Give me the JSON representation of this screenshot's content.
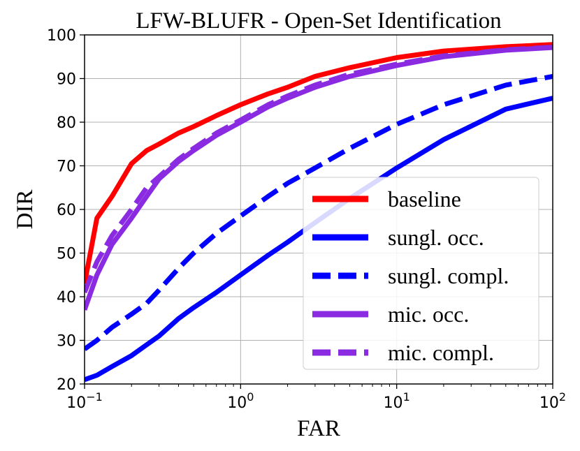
{
  "chart_data": {
    "type": "line",
    "title": "LFW-BLUFR - Open-Set Identification",
    "xlabel": "FAR",
    "ylabel": "DIR",
    "xscale": "log",
    "xlim": [
      0.1,
      100
    ],
    "ylim": [
      20,
      100
    ],
    "grid": true,
    "legend_position": "lower-right",
    "x_ticks": [
      {
        "value": 0.1,
        "base": "10",
        "exp": "−1"
      },
      {
        "value": 1,
        "base": "10",
        "exp": "0"
      },
      {
        "value": 10,
        "base": "10",
        "exp": "1"
      },
      {
        "value": 100,
        "base": "10",
        "exp": "2"
      }
    ],
    "y_ticks": [
      20,
      30,
      40,
      50,
      60,
      70,
      80,
      90,
      100
    ],
    "series": [
      {
        "name": "baseline",
        "color": "#ff0000",
        "dash": "solid",
        "x": [
          0.1,
          0.12,
          0.15,
          0.2,
          0.25,
          0.3,
          0.4,
          0.5,
          0.7,
          1,
          1.5,
          2,
          3,
          5,
          10,
          20,
          50,
          100
        ],
        "y": [
          43,
          58,
          63,
          70.5,
          73.5,
          75,
          77.5,
          79,
          81.5,
          84,
          86.5,
          88,
          90.5,
          92.5,
          94.8,
          96.3,
          97.3,
          97.8
        ]
      },
      {
        "name": "sungl. occ.",
        "color": "#0000ff",
        "dash": "solid",
        "x": [
          0.1,
          0.12,
          0.15,
          0.2,
          0.25,
          0.3,
          0.4,
          0.5,
          0.7,
          1,
          1.5,
          2,
          3,
          5,
          10,
          20,
          50,
          100
        ],
        "y": [
          21,
          22,
          24,
          26.5,
          29,
          31,
          35,
          37.5,
          41,
          45,
          49.5,
          52.5,
          57,
          62.5,
          69.5,
          76,
          83,
          85.5
        ]
      },
      {
        "name": "sungl. compl.",
        "color": "#0000ff",
        "dash": "dashed",
        "x": [
          0.1,
          0.12,
          0.15,
          0.2,
          0.25,
          0.3,
          0.4,
          0.5,
          0.7,
          1,
          1.5,
          2,
          3,
          5,
          10,
          20,
          50,
          100
        ],
        "y": [
          28,
          30,
          33,
          36,
          38.5,
          41.5,
          46.5,
          50,
          54.5,
          58.5,
          63,
          66,
          69.5,
          74,
          79.5,
          84,
          88.5,
          90.5
        ]
      },
      {
        "name": "mic. occ.",
        "color": "#8a2be2",
        "dash": "solid",
        "x": [
          0.1,
          0.12,
          0.15,
          0.2,
          0.25,
          0.3,
          0.4,
          0.5,
          0.7,
          1,
          1.5,
          2,
          3,
          5,
          10,
          20,
          50,
          100
        ],
        "y": [
          37,
          45,
          52,
          58,
          63,
          67,
          71,
          73.5,
          77,
          80,
          83.5,
          85.5,
          88,
          90.5,
          93,
          95,
          96.5,
          97.1
        ]
      },
      {
        "name": "mic. compl.",
        "color": "#8a2be2",
        "dash": "dashed",
        "x": [
          0.1,
          0.12,
          0.15,
          0.2,
          0.25,
          0.3,
          0.4,
          0.5,
          0.7,
          1,
          1.5,
          2,
          3,
          5,
          10,
          20,
          50,
          100
        ],
        "y": [
          41,
          48,
          54,
          60,
          65,
          67.5,
          71.5,
          74,
          77.5,
          80.5,
          84,
          86,
          88.5,
          91,
          93.3,
          95.2,
          96.6,
          97.2
        ]
      }
    ]
  }
}
